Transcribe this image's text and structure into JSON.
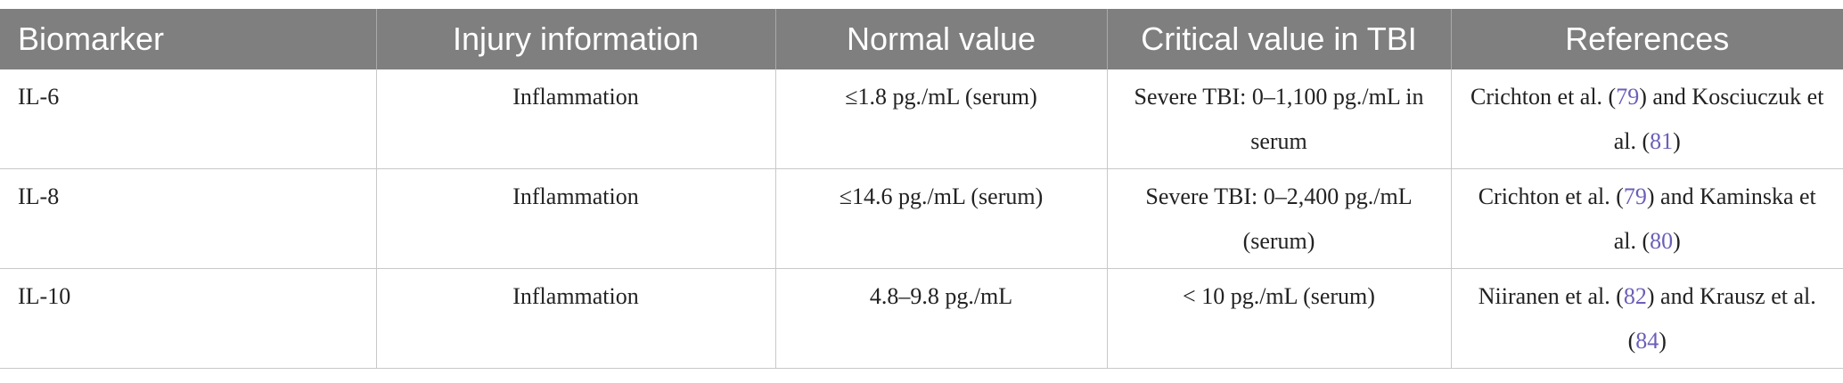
{
  "table": {
    "header": [
      "Biomarker",
      "Injury information",
      "Normal value",
      "Critical value in TBI",
      "References"
    ],
    "rows": [
      [
        "IL-6",
        "Inflammation",
        "≤1.8 pg./mL (serum)",
        "Severe TBI: 0–1,100 pg./mL in serum",
        [
          "Crichton et al. (",
          "79",
          ") and Kosciuczuk et al. (",
          "81",
          ")"
        ]
      ],
      [
        "IL-8",
        "Inflammation",
        "≤14.6 pg./mL (serum)",
        "Severe TBI: 0–2,400 pg./mL (serum)",
        [
          "Crichton et al. (",
          "79",
          ") and Kaminska et al. (",
          "80",
          ")"
        ]
      ],
      [
        "IL-10",
        "Inflammation",
        "4.8–9.8 pg./mL",
        "< 10 pg./mL (serum)",
        [
          "Niiranen et al. (",
          "82",
          ") and Krausz et al. (",
          "84",
          ")"
        ]
      ]
    ]
  }
}
